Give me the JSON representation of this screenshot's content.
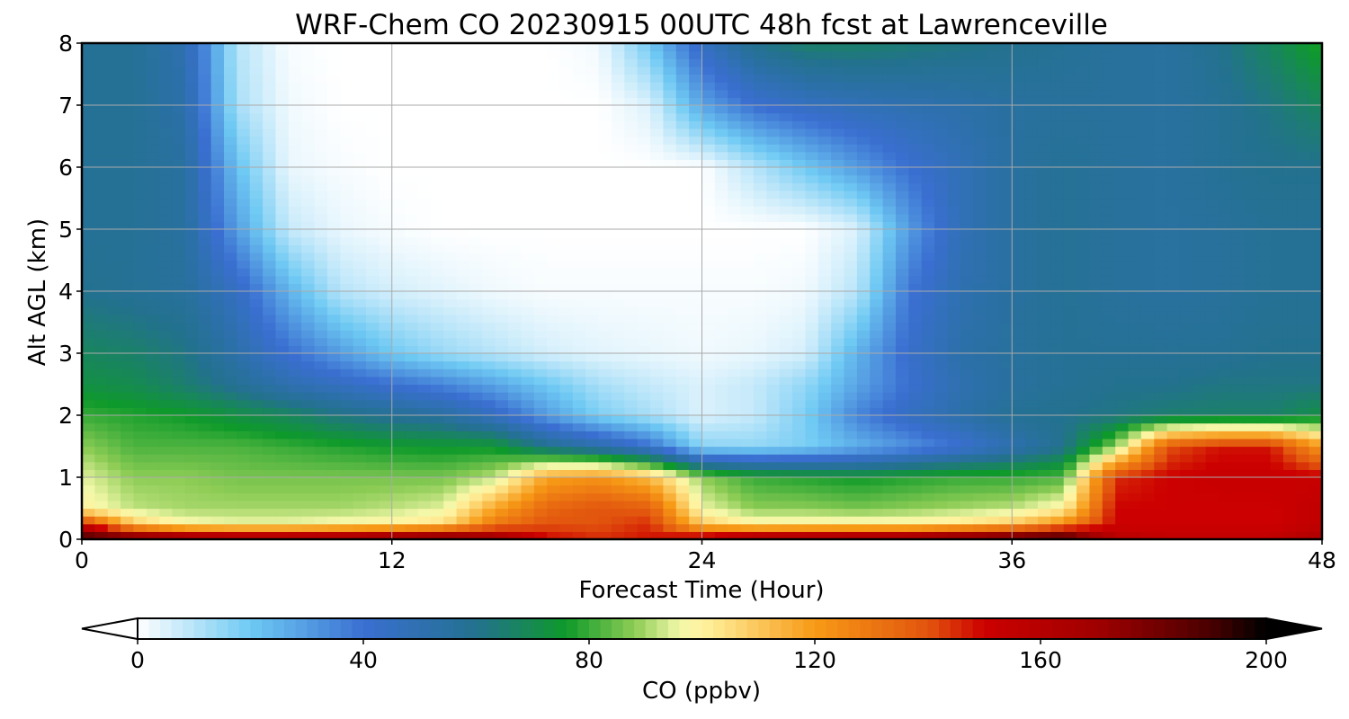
{
  "chart_data": {
    "type": "heatmap",
    "title": "WRF-Chem CO  20230915 00UTC 48h fcst at Lawrenceville",
    "xlabel": "Forecast Time (Hour)",
    "ylabel": "Alt AGL (km)",
    "xlim": [
      0,
      48
    ],
    "ylim": [
      0,
      8
    ],
    "x_ticks": [
      "0",
      "12",
      "24",
      "36",
      "48"
    ],
    "y_ticks": [
      "0",
      "1",
      "2",
      "3",
      "4",
      "5",
      "6",
      "7",
      "8"
    ],
    "grid": true,
    "x": [
      0,
      2,
      4,
      6,
      8,
      10,
      12,
      14,
      16,
      18,
      20,
      22,
      24,
      26,
      28,
      30,
      32,
      34,
      36,
      38,
      40,
      42,
      44,
      46,
      48
    ],
    "y": [
      0,
      0.25,
      0.5,
      1,
      1.5,
      2,
      2.5,
      3,
      4,
      5,
      6,
      7,
      8
    ],
    "values": [
      [
        195,
        190,
        182,
        178,
        178,
        180,
        185,
        190,
        175,
        150,
        145,
        148,
        160,
        175,
        178,
        180,
        182,
        190,
        195,
        200,
        160,
        155,
        155,
        155,
        165
      ],
      [
        150,
        110,
        98,
        96,
        96,
        98,
        100,
        105,
        130,
        140,
        140,
        145,
        110,
        100,
        100,
        100,
        100,
        104,
        110,
        125,
        150,
        150,
        150,
        150,
        155
      ],
      [
        100,
        92,
        90,
        90,
        90,
        90,
        92,
        95,
        118,
        135,
        140,
        138,
        96,
        88,
        88,
        86,
        88,
        90,
        92,
        100,
        150,
        150,
        150,
        150,
        155
      ],
      [
        95,
        88,
        88,
        86,
        86,
        86,
        86,
        86,
        92,
        118,
        122,
        112,
        88,
        80,
        78,
        76,
        78,
        80,
        80,
        82,
        145,
        150,
        152,
        152,
        152
      ],
      [
        88,
        82,
        82,
        82,
        80,
        78,
        76,
        75,
        75,
        60,
        52,
        40,
        16,
        15,
        18,
        25,
        32,
        40,
        50,
        60,
        88,
        140,
        148,
        148,
        120
      ],
      [
        80,
        78,
        76,
        72,
        68,
        62,
        58,
        55,
        45,
        30,
        18,
        12,
        5,
        8,
        18,
        35,
        45,
        52,
        58,
        60,
        62,
        65,
        66,
        66,
        72
      ],
      [
        72,
        70,
        65,
        58,
        50,
        45,
        40,
        35,
        28,
        20,
        12,
        8,
        5,
        8,
        15,
        28,
        40,
        50,
        55,
        58,
        60,
        60,
        62,
        62,
        62
      ],
      [
        68,
        66,
        62,
        52,
        40,
        30,
        20,
        14,
        10,
        6,
        4,
        3,
        2,
        3,
        6,
        25,
        42,
        52,
        56,
        58,
        58,
        58,
        58,
        60,
        60
      ],
      [
        60,
        58,
        56,
        45,
        25,
        10,
        6,
        4,
        2,
        1,
        1,
        1,
        1,
        1,
        2,
        10,
        38,
        50,
        55,
        58,
        56,
        55,
        56,
        58,
        58
      ],
      [
        58,
        58,
        55,
        30,
        8,
        3,
        1,
        0,
        0,
        0,
        0,
        0,
        0,
        0,
        0,
        5,
        30,
        48,
        55,
        58,
        56,
        55,
        56,
        58,
        58
      ],
      [
        58,
        58,
        55,
        22,
        3,
        1,
        0,
        0,
        0,
        0,
        0,
        0,
        0,
        10,
        20,
        30,
        40,
        48,
        55,
        58,
        56,
        55,
        58,
        60,
        60
      ],
      [
        58,
        58,
        52,
        12,
        2,
        0,
        0,
        0,
        0,
        0,
        0,
        5,
        28,
        40,
        45,
        48,
        50,
        52,
        55,
        56,
        56,
        55,
        58,
        62,
        68
      ],
      [
        58,
        58,
        50,
        10,
        1,
        0,
        0,
        0,
        0,
        0,
        2,
        20,
        45,
        60,
        66,
        66,
        64,
        62,
        60,
        58,
        56,
        55,
        60,
        68,
        78
      ]
    ],
    "colorbar": {
      "label": "CO  (ppbv)",
      "min": 0,
      "max": 200,
      "ticks": [
        "0",
        "40",
        "80",
        "120",
        "160",
        "200"
      ],
      "extend": "both",
      "stops": [
        {
          "v": 0,
          "c": "#ffffff"
        },
        {
          "v": 20,
          "c": "#6ec9f3"
        },
        {
          "v": 40,
          "c": "#3a6fd1"
        },
        {
          "v": 60,
          "c": "#23718f"
        },
        {
          "v": 76,
          "c": "#0e9a2a"
        },
        {
          "v": 88,
          "c": "#8ccc55"
        },
        {
          "v": 96,
          "c": "#f2f7a8"
        },
        {
          "v": 100,
          "c": "#fff3a0"
        },
        {
          "v": 120,
          "c": "#f79a16"
        },
        {
          "v": 140,
          "c": "#e2550e"
        },
        {
          "v": 150,
          "c": "#cc0000"
        },
        {
          "v": 170,
          "c": "#a00000"
        },
        {
          "v": 190,
          "c": "#4a0000"
        },
        {
          "v": 200,
          "c": "#000000"
        }
      ]
    }
  }
}
